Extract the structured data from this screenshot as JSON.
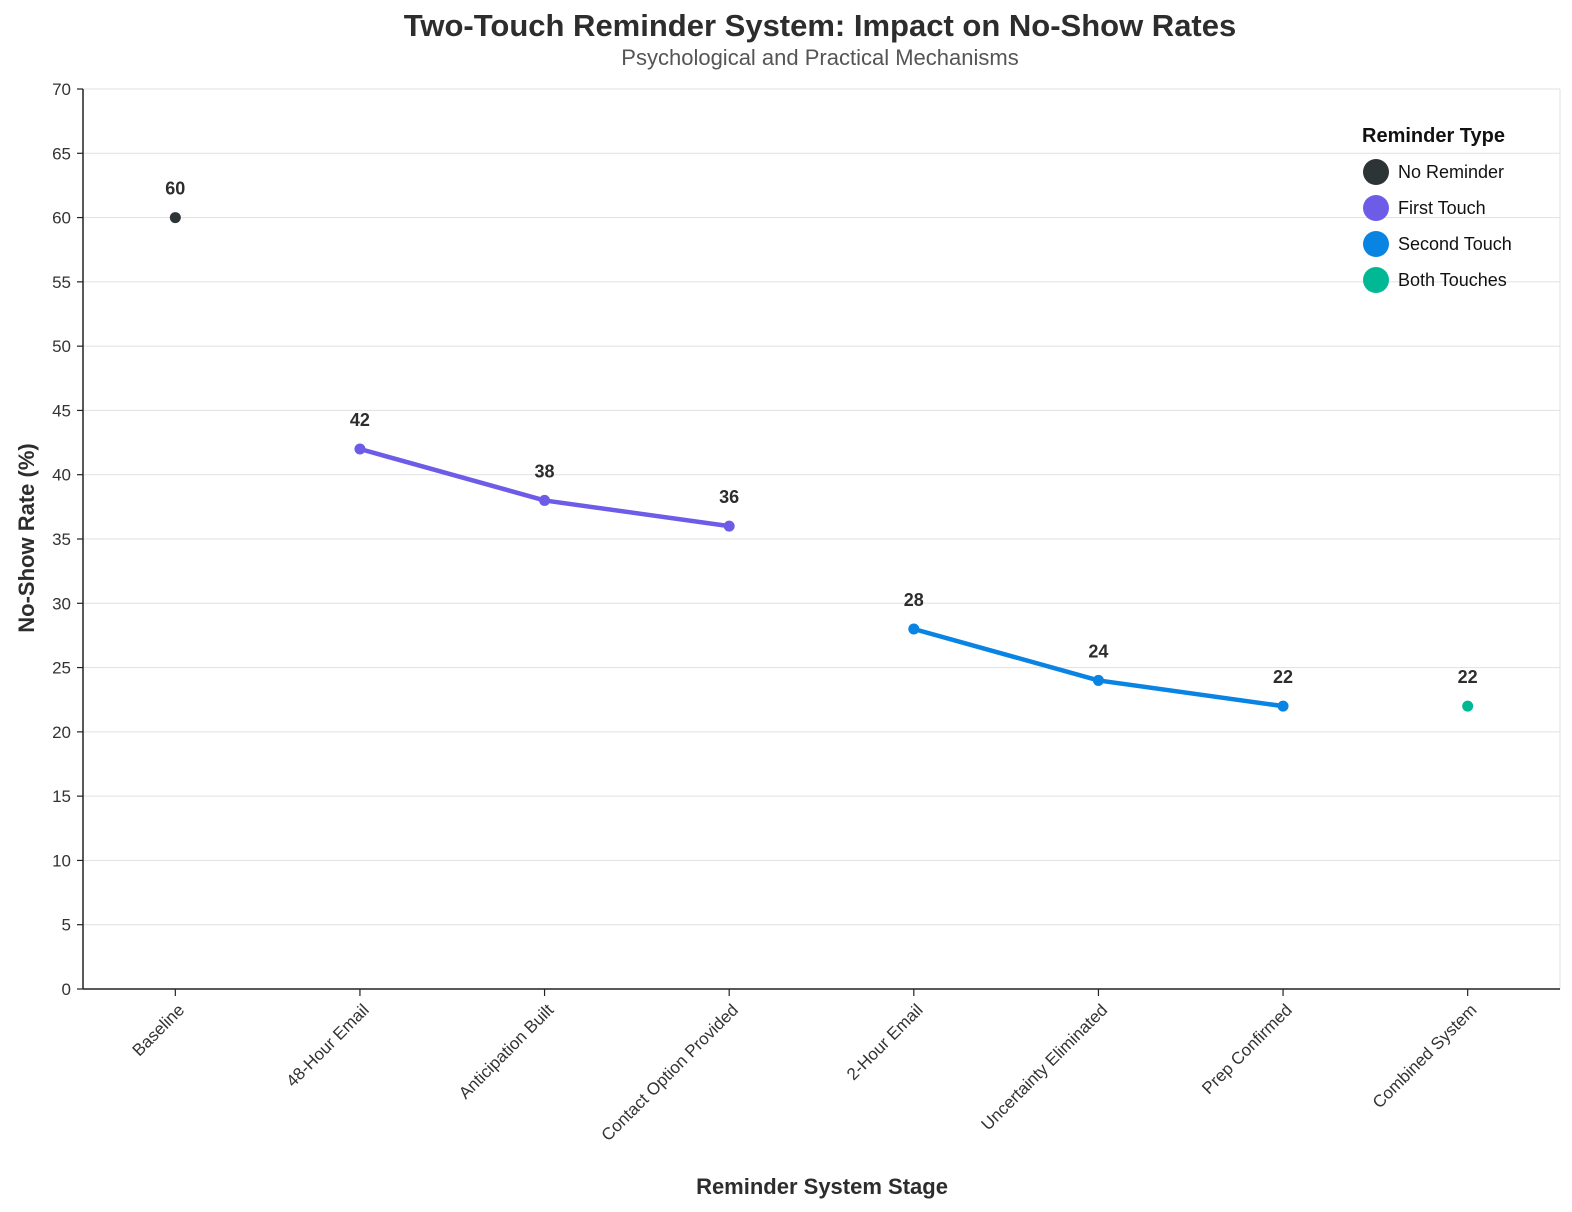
{
  "chart_data": {
    "type": "line",
    "title": "Two-Touch Reminder System: Impact on No-Show Rates",
    "subtitle": "Psychological and Practical Mechanisms",
    "xlabel": "Reminder System Stage",
    "ylabel": "No-Show Rate (%)",
    "ylim": [
      0,
      70
    ],
    "yticks": [
      0,
      5,
      10,
      15,
      20,
      25,
      30,
      35,
      40,
      45,
      50,
      55,
      60,
      65,
      70
    ],
    "grid": true,
    "legend_position": "top-right",
    "legend_title": "Reminder Type",
    "categories": [
      "Baseline",
      "48-Hour Email",
      "Anticipation Built",
      "Contact Option Provided",
      "2-Hour Email",
      "Uncertainty Eliminated",
      "Prep Confirmed",
      "Combined System"
    ],
    "series": [
      {
        "name": "No Reminder",
        "color": "#2d3436",
        "points": [
          {
            "category": "Baseline",
            "value": 60
          }
        ]
      },
      {
        "name": "First Touch",
        "color": "#6c5ce7",
        "points": [
          {
            "category": "48-Hour Email",
            "value": 42
          },
          {
            "category": "Anticipation Built",
            "value": 38
          },
          {
            "category": "Contact Option Provided",
            "value": 36
          }
        ]
      },
      {
        "name": "Second Touch",
        "color": "#0984e3",
        "points": [
          {
            "category": "2-Hour Email",
            "value": 28
          },
          {
            "category": "Uncertainty Eliminated",
            "value": 24
          },
          {
            "category": "Prep Confirmed",
            "value": 22
          }
        ]
      },
      {
        "name": "Both Touches",
        "color": "#00b894",
        "points": [
          {
            "category": "Combined System",
            "value": 22
          }
        ]
      }
    ]
  }
}
